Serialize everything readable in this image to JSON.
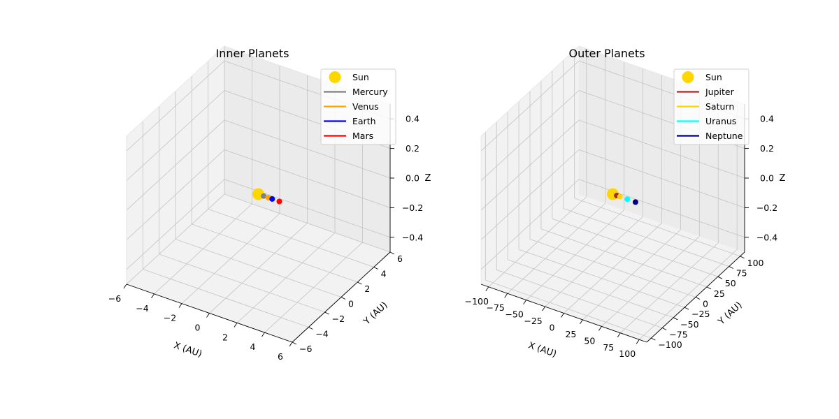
{
  "chart_data": [
    {
      "type": "scatter",
      "projection": "3d",
      "title": "Inner Planets",
      "xlabel": "X (AU)",
      "ylabel": "Y (AU)",
      "zlabel": "Z",
      "xlim": [
        -6,
        6
      ],
      "ylim": [
        -6,
        6
      ],
      "zlim": [
        -0.5,
        0.5
      ],
      "xticks": [
        "−6",
        "−4",
        "−2",
        "0",
        "2",
        "4",
        "6"
      ],
      "yticks": [
        "−6",
        "−4",
        "−2",
        "0",
        "2",
        "4",
        "6"
      ],
      "zticks": [
        "−0.4",
        "−0.2",
        "0.0",
        "0.2",
        "0.4"
      ],
      "grid": true,
      "legend_position": "top-right",
      "series": [
        {
          "name": "Sun",
          "color": "#FFD700",
          "marker": "circle-large",
          "x": 0,
          "y": 0,
          "z": 0
        },
        {
          "name": "Mercury",
          "color": "#808080",
          "x": 0.39,
          "y": 0,
          "z": 0
        },
        {
          "name": "Venus",
          "color": "#FFA500",
          "x": 0.72,
          "y": 0,
          "z": 0
        },
        {
          "name": "Earth",
          "color": "#0000FF",
          "x": 1.0,
          "y": 0,
          "z": 0
        },
        {
          "name": "Mars",
          "color": "#FF0000",
          "x": 1.52,
          "y": 0,
          "z": 0
        }
      ]
    },
    {
      "type": "scatter",
      "projection": "3d",
      "title": "Outer Planets",
      "xlabel": "X (AU)",
      "ylabel": "Y (AU)",
      "zlabel": "Z",
      "xlim": [
        -110,
        110
      ],
      "ylim": [
        -110,
        110
      ],
      "zlim": [
        -0.5,
        0.5
      ],
      "xticks": [
        "−100",
        "−75",
        "−50",
        "−25",
        "0",
        "25",
        "50",
        "75",
        "100"
      ],
      "yticks": [
        "−100",
        "−75",
        "−50",
        "−25",
        "0",
        "25",
        "50",
        "75",
        "100"
      ],
      "zticks": [
        "−0.4",
        "−0.2",
        "0.0",
        "0.2",
        "0.4"
      ],
      "grid": true,
      "legend_position": "top-right",
      "series": [
        {
          "name": "Sun",
          "color": "#FFD700",
          "marker": "circle-large",
          "x": 0,
          "y": 0,
          "z": 0
        },
        {
          "name": "Jupiter",
          "color": "#A52A2A",
          "x": 5.2,
          "y": 0,
          "z": 0
        },
        {
          "name": "Saturn",
          "color": "#FFD700",
          "x": 9.5,
          "y": 0,
          "z": 0
        },
        {
          "name": "Uranus",
          "color": "#00FFFF",
          "x": 19.2,
          "y": 0,
          "z": 0
        },
        {
          "name": "Neptune",
          "color": "#000080",
          "x": 30.1,
          "y": 0,
          "z": 0
        }
      ]
    }
  ]
}
